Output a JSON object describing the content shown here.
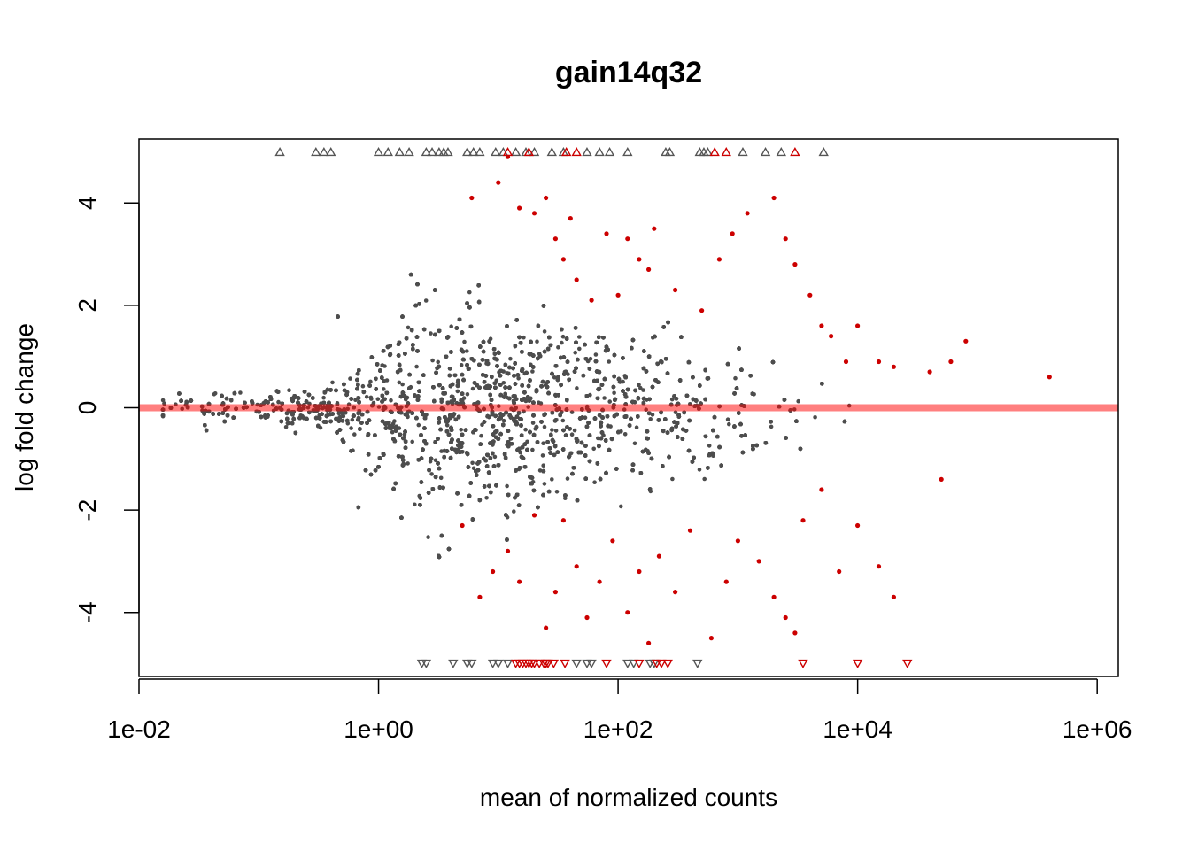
{
  "chart_data": {
    "type": "scatter",
    "title": "gain14q32",
    "xlabel": "mean of normalized counts",
    "ylabel": "log fold change",
    "x_scale": "log10",
    "xlim": [
      0.01,
      1500000
    ],
    "ylim": [
      -5.25,
      5.25
    ],
    "x_ticks": [
      0.01,
      1,
      100,
      10000,
      1000000
    ],
    "x_tick_labels": [
      "1e-02",
      "1e+00",
      "1e+02",
      "1e+04",
      "1e+06"
    ],
    "y_ticks": [
      -4,
      -2,
      0,
      2,
      4
    ],
    "y_tick_labels": [
      "-4",
      "-2",
      "0",
      "2",
      "4"
    ],
    "grid": false,
    "legend": "none",
    "reference_line": {
      "y": 0,
      "color": "#ff000080"
    },
    "colors": {
      "not_significant": "#4d4d4d",
      "significant": "#cc0000"
    },
    "series": [
      {
        "significant": true,
        "points": [
          [
            6,
            4.1
          ],
          [
            10,
            4.4
          ],
          [
            12,
            4.9
          ],
          [
            15,
            3.9
          ],
          [
            20,
            3.8
          ],
          [
            25,
            4.1
          ],
          [
            30,
            3.3
          ],
          [
            35,
            2.9
          ],
          [
            40,
            3.7
          ],
          [
            45,
            2.5
          ],
          [
            60,
            2.1
          ],
          [
            80,
            3.4
          ],
          [
            100,
            2.2
          ],
          [
            120,
            3.3
          ],
          [
            150,
            2.9
          ],
          [
            180,
            2.7
          ],
          [
            200,
            3.5
          ],
          [
            300,
            2.3
          ],
          [
            500,
            1.9
          ],
          [
            700,
            2.9
          ],
          [
            900,
            3.4
          ],
          [
            1200,
            3.8
          ],
          [
            2000,
            4.1
          ],
          [
            2500,
            3.3
          ],
          [
            3000,
            2.8
          ],
          [
            4000,
            2.2
          ],
          [
            5000,
            1.6
          ],
          [
            6000,
            1.4
          ],
          [
            8000,
            0.9
          ],
          [
            10000,
            1.6
          ],
          [
            15000,
            0.9
          ],
          [
            20000,
            0.8
          ],
          [
            40000,
            0.7
          ],
          [
            60000,
            0.9
          ],
          [
            80000,
            1.3
          ],
          [
            400000,
            0.6
          ],
          [
            5,
            -2.3
          ],
          [
            7,
            -3.7
          ],
          [
            9,
            -3.2
          ],
          [
            12,
            -2.8
          ],
          [
            15,
            -3.4
          ],
          [
            20,
            -2.1
          ],
          [
            25,
            -4.3
          ],
          [
            30,
            -3.6
          ],
          [
            35,
            -2.2
          ],
          [
            45,
            -3.1
          ],
          [
            55,
            -4.1
          ],
          [
            70,
            -3.4
          ],
          [
            90,
            -2.6
          ],
          [
            120,
            -4.0
          ],
          [
            150,
            -3.2
          ],
          [
            180,
            -4.6
          ],
          [
            220,
            -2.9
          ],
          [
            300,
            -3.6
          ],
          [
            400,
            -2.4
          ],
          [
            600,
            -4.5
          ],
          [
            800,
            -3.4
          ],
          [
            1000,
            -2.6
          ],
          [
            1500,
            -3.0
          ],
          [
            2000,
            -3.7
          ],
          [
            2500,
            -4.1
          ],
          [
            3000,
            -4.4
          ],
          [
            3500,
            -2.2
          ],
          [
            5000,
            -1.6
          ],
          [
            7000,
            -3.2
          ],
          [
            10000,
            -2.3
          ],
          [
            15000,
            -3.1
          ],
          [
            20000,
            -3.7
          ],
          [
            50000,
            -1.4
          ]
        ]
      },
      {
        "significant": false,
        "points": []
      }
    ],
    "capped_points": [
      {
        "direction": "up",
        "significant": false,
        "x": [
          0.15,
          0.3,
          0.35,
          0.4,
          1.0,
          1.2,
          1.5,
          1.8,
          2.5,
          2.8,
          3.2,
          3.5,
          3.8,
          5.5,
          6.2,
          7,
          9.5,
          11,
          14,
          17,
          20,
          28,
          35,
          55,
          70,
          85,
          120,
          250,
          270,
          480,
          520,
          560,
          1100,
          1700,
          2300,
          5200
        ]
      },
      {
        "direction": "up",
        "significant": true,
        "x": [
          12,
          18,
          37,
          45,
          640,
          800,
          3000
        ]
      },
      {
        "direction": "down",
        "significant": false,
        "x": [
          2.3,
          2.5,
          4.2,
          5.5,
          6,
          9,
          10,
          12,
          45,
          55,
          60,
          120,
          135,
          185,
          200,
          460
        ]
      },
      {
        "direction": "down",
        "significant": true,
        "x": [
          14,
          15,
          16,
          17,
          18,
          19,
          20,
          22,
          24,
          25,
          26,
          29,
          36,
          80,
          150,
          210,
          230,
          260,
          3500,
          10000,
          26000
        ]
      }
    ]
  }
}
